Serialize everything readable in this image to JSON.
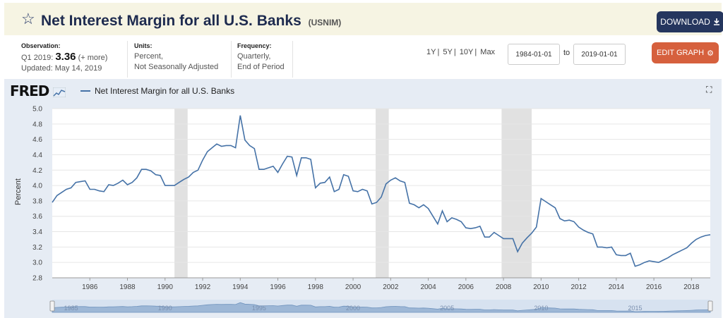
{
  "header": {
    "title": "Net Interest Margin for all U.S. Banks",
    "series_id": "(USNIM)",
    "download_label": "DOWNLOAD"
  },
  "observation": {
    "label": "Observation:",
    "period": "Q1 2019:",
    "value": "3.36",
    "more": "(+ more)",
    "updated": "Updated: May 14, 2019"
  },
  "units": {
    "label": "Units:",
    "line1": "Percent,",
    "line2": "Not Seasonally Adjusted"
  },
  "frequency": {
    "label": "Frequency:",
    "line1": "Quarterly,",
    "line2": "End of Period"
  },
  "range_buttons": [
    "1Y",
    "5Y",
    "10Y",
    "Max"
  ],
  "date_from": "1984-01-01",
  "date_to_label": "to",
  "date_to": "2019-01-01",
  "edit_label": "EDIT GRAPH",
  "logo_text": "FRED",
  "colors": {
    "line": "#4572a7",
    "title_bg": "#f6f4e3",
    "download": "#25365e",
    "edit": "#d6603d",
    "recession": "#e1e1e1"
  },
  "chart_data": {
    "type": "line",
    "ylabel": "Percent",
    "ylim": [
      2.8,
      5.0
    ],
    "xlim": [
      1984.0,
      2019.0
    ],
    "yticks": [
      "2.8",
      "3.0",
      "3.2",
      "3.4",
      "3.6",
      "3.8",
      "4.0",
      "4.2",
      "4.4",
      "4.6",
      "4.8",
      "5.0"
    ],
    "xticks": [
      "1986",
      "1988",
      "1990",
      "1992",
      "1994",
      "1996",
      "1998",
      "2000",
      "2002",
      "2004",
      "2006",
      "2008",
      "2010",
      "2012",
      "2014",
      "2016",
      "2018"
    ],
    "recessions": [
      [
        1990.5,
        1991.2
      ],
      [
        2001.2,
        2001.9
      ],
      [
        2007.9,
        2009.5
      ]
    ],
    "grid": true,
    "legend_position": "top-left",
    "series": [
      {
        "name": "Net Interest Margin for all U.S. Banks",
        "x": [
          1984.0,
          1984.25,
          1984.5,
          1984.75,
          1985.0,
          1985.25,
          1985.5,
          1985.75,
          1986.0,
          1986.25,
          1986.5,
          1986.75,
          1987.0,
          1987.25,
          1987.5,
          1987.75,
          1988.0,
          1988.25,
          1988.5,
          1988.75,
          1989.0,
          1989.25,
          1989.5,
          1989.75,
          1990.0,
          1990.25,
          1990.5,
          1990.75,
          1991.0,
          1991.25,
          1991.5,
          1991.75,
          1992.0,
          1992.25,
          1992.5,
          1992.75,
          1993.0,
          1993.25,
          1993.5,
          1993.75,
          1994.0,
          1994.25,
          1994.5,
          1994.75,
          1995.0,
          1995.25,
          1995.5,
          1995.75,
          1996.0,
          1996.25,
          1996.5,
          1996.75,
          1997.0,
          1997.25,
          1997.5,
          1997.75,
          1998.0,
          1998.25,
          1998.5,
          1998.75,
          1999.0,
          1999.25,
          1999.5,
          1999.75,
          2000.0,
          2000.25,
          2000.5,
          2000.75,
          2001.0,
          2001.25,
          2001.5,
          2001.75,
          2002.0,
          2002.25,
          2002.5,
          2002.75,
          2003.0,
          2003.25,
          2003.5,
          2003.75,
          2004.0,
          2004.25,
          2004.5,
          2004.75,
          2005.0,
          2005.25,
          2005.5,
          2005.75,
          2006.0,
          2006.25,
          2006.5,
          2006.75,
          2007.0,
          2007.25,
          2007.5,
          2007.75,
          2008.0,
          2008.25,
          2008.5,
          2008.75,
          2009.0,
          2009.25,
          2009.5,
          2009.75,
          2010.0,
          2010.25,
          2010.5,
          2010.75,
          2011.0,
          2011.25,
          2011.5,
          2011.75,
          2012.0,
          2012.25,
          2012.5,
          2012.75,
          2013.0,
          2013.25,
          2013.5,
          2013.75,
          2014.0,
          2014.25,
          2014.5,
          2014.75,
          2015.0,
          2015.25,
          2015.5,
          2015.75,
          2016.0,
          2016.25,
          2016.5,
          2016.75,
          2017.0,
          2017.25,
          2017.5,
          2017.75,
          2018.0,
          2018.25,
          2018.5,
          2018.75,
          2019.0
        ],
        "values": [
          3.78,
          3.87,
          3.91,
          3.95,
          3.97,
          4.04,
          4.05,
          4.06,
          3.95,
          3.95,
          3.93,
          3.92,
          4.01,
          4.0,
          4.03,
          4.07,
          4.01,
          4.04,
          4.1,
          4.21,
          4.21,
          4.19,
          4.14,
          4.13,
          4.0,
          4.0,
          4.0,
          4.04,
          4.08,
          4.11,
          4.17,
          4.2,
          4.33,
          4.44,
          4.49,
          4.54,
          4.51,
          4.52,
          4.52,
          4.49,
          4.91,
          4.59,
          4.52,
          4.48,
          4.21,
          4.21,
          4.23,
          4.25,
          4.17,
          4.28,
          4.38,
          4.37,
          4.13,
          4.36,
          4.36,
          4.34,
          3.97,
          4.03,
          4.04,
          4.11,
          3.92,
          3.95,
          4.14,
          4.12,
          3.93,
          3.92,
          3.95,
          3.93,
          3.76,
          3.78,
          3.85,
          4.02,
          4.07,
          4.1,
          4.06,
          4.04,
          3.77,
          3.75,
          3.71,
          3.75,
          3.7,
          3.6,
          3.5,
          3.67,
          3.53,
          3.58,
          3.56,
          3.53,
          3.45,
          3.44,
          3.45,
          3.47,
          3.33,
          3.33,
          3.39,
          3.35,
          3.31,
          3.31,
          3.31,
          3.14,
          3.25,
          3.32,
          3.38,
          3.46,
          3.83,
          3.79,
          3.75,
          3.71,
          3.57,
          3.54,
          3.55,
          3.53,
          3.46,
          3.42,
          3.39,
          3.37,
          3.2,
          3.2,
          3.19,
          3.2,
          3.1,
          3.09,
          3.09,
          3.12,
          2.95,
          2.97,
          3.0,
          3.02,
          3.01,
          3.0,
          3.03,
          3.06,
          3.1,
          3.13,
          3.16,
          3.19,
          3.25,
          3.3,
          3.33,
          3.35,
          3.36
        ]
      }
    ],
    "navigator_labels": [
      "1985",
      "1990",
      "1995",
      "2000",
      "2005",
      "2010",
      "2015"
    ],
    "navigator_ticks": [
      1985,
      1990,
      1995,
      2000,
      2005,
      2010,
      2015
    ]
  }
}
